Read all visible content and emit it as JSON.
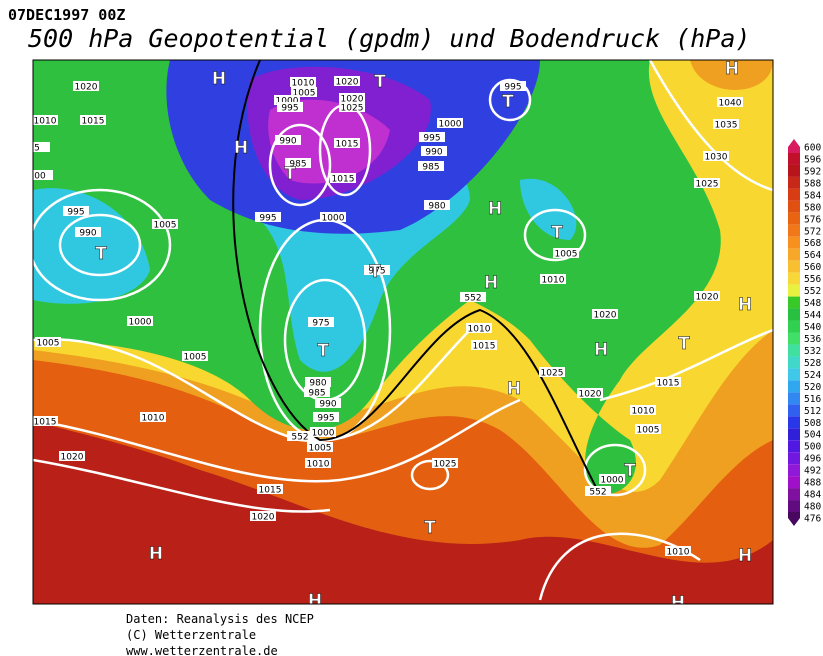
{
  "header": {
    "date": "07DEC1997 00Z",
    "title": "500 hPa Geopotential (gpdm) und Bodendruck (hPa)"
  },
  "map": {
    "labels": [
      1020,
      1010,
      1015,
      "5",
      "00",
      995,
      990,
      1005,
      1000,
      1005,
      1005,
      1010,
      1015,
      1020,
      1015,
      1020,
      1010,
      1005,
      1000,
      995,
      1020,
      1020,
      1025,
      990,
      985,
      1015,
      1015,
      1000,
      995,
      995,
      990,
      985,
      1000,
      980,
      975,
      975,
      980,
      985,
      990,
      995,
      1000,
      1005,
      1010,
      995,
      1005,
      1010,
      1020,
      1010,
      1015,
      1025,
      1020,
      1015,
      1010,
      1005,
      1000,
      1025,
      1010,
      1040,
      1035,
      1030,
      1025,
      1020,
      552,
      552,
      552,
      "H",
      "H",
      "T",
      "T",
      "T",
      "T",
      "H",
      "T",
      "H",
      "T",
      "T",
      "H",
      "T",
      "H",
      "T",
      "T",
      "H",
      "H",
      "H",
      "H",
      "H",
      "H"
    ]
  },
  "colorbar": {
    "ticks": [
      600,
      596,
      592,
      588,
      584,
      580,
      576,
      572,
      568,
      564,
      560,
      556,
      552,
      548,
      544,
      540,
      536,
      532,
      528,
      524,
      520,
      516,
      512,
      508,
      504,
      500,
      496,
      492,
      488,
      484,
      480,
      476
    ],
    "colors": [
      "#d81b60",
      "#c0102a",
      "#b8141c",
      "#c82818",
      "#d83c14",
      "#e05010",
      "#e86410",
      "#f07818",
      "#f89020",
      "#f8a828",
      "#f8c030",
      "#f8d838",
      "#e8f040",
      "#38c828",
      "#28c040",
      "#30d050",
      "#40e068",
      "#40e0a0",
      "#40d8c8",
      "#40c8e8",
      "#30a8f0",
      "#3088f0",
      "#3060f0",
      "#2838e8",
      "#3020d8",
      "#5018e0",
      "#7018e0",
      "#9018d8",
      "#a010c8",
      "#8010a0",
      "#600c80",
      "#480860"
    ]
  },
  "footer": [
    "Daten: Reanalysis des NCEP",
    "(C) Wetterzentrale",
    "www.wetterzentrale.de"
  ]
}
